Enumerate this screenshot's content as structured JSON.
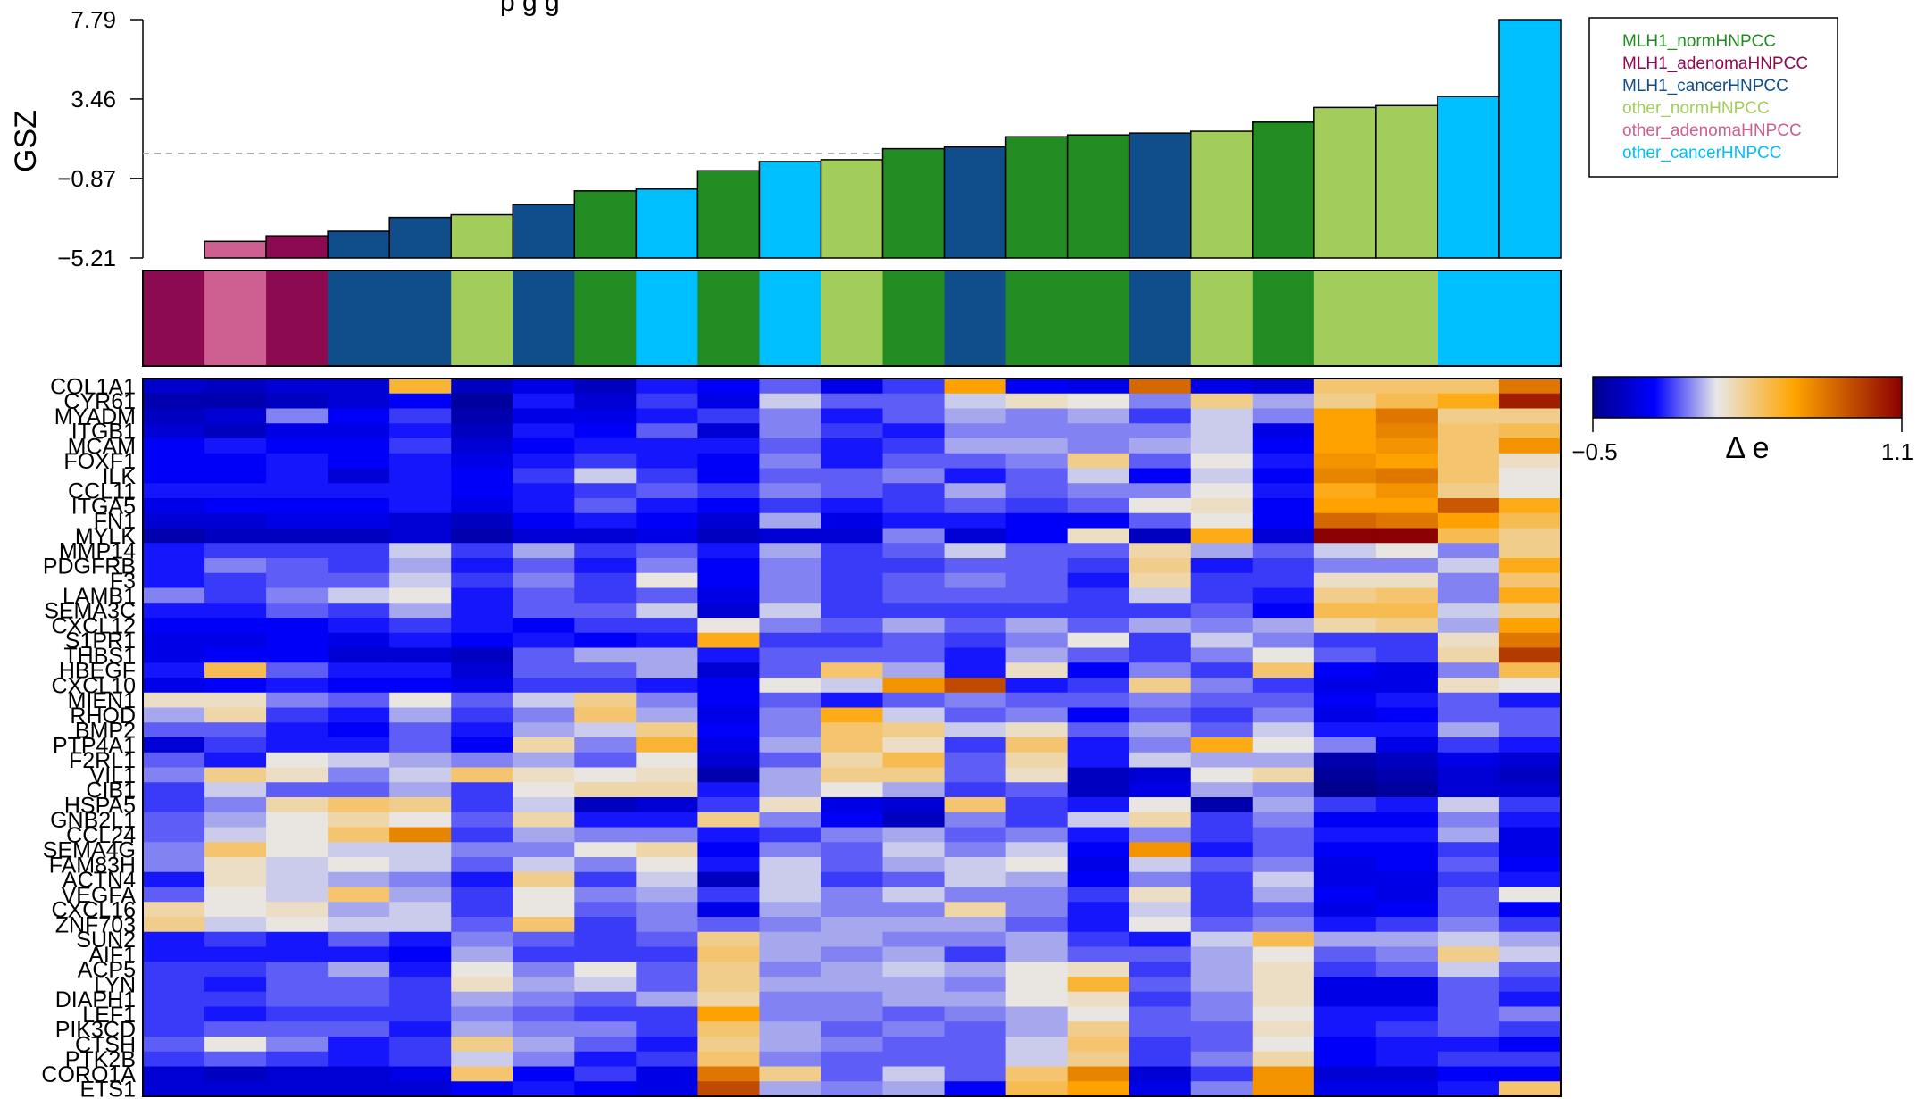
{
  "chart_data": {
    "type": "heatmap",
    "title_partial": "p     g          g",
    "bar_panel": {
      "ylabel": "GSZ",
      "y_ticks": [
        "7.79",
        "3.46",
        "−0.87",
        "−5.21"
      ],
      "y_tick_values": [
        7.79,
        3.46,
        -0.87,
        -5.21
      ],
      "ylim": [
        -5.21,
        7.79
      ],
      "threshold": 0.5,
      "values": [
        -5.3,
        -4.3,
        -4.0,
        -3.75,
        -3.0,
        -2.85,
        -2.3,
        -1.55,
        -1.45,
        -0.45,
        0.05,
        0.15,
        0.75,
        0.85,
        1.4,
        1.5,
        1.6,
        1.7,
        2.2,
        3.0,
        3.1,
        3.6,
        7.79
      ],
      "groups": [
        1,
        4,
        1,
        2,
        2,
        3,
        2,
        0,
        5,
        0,
        5,
        3,
        0,
        2,
        0,
        0,
        2,
        3,
        0,
        3,
        3,
        5,
        5
      ]
    },
    "legend": [
      {
        "label": "MLH1_normHNPCC",
        "color": "#228b22"
      },
      {
        "label": "MLH1_adenomaHNPCC",
        "color": "#8b0a50"
      },
      {
        "label": "MLH1_cancerHNPCC",
        "color": "#104e8b"
      },
      {
        "label": "other_normHNPCC",
        "color": "#a2cd5a"
      },
      {
        "label": "other_adenomaHNPCC",
        "color": "#cd6090"
      },
      {
        "label": "other_cancerHNPCC",
        "color": "#00bfff"
      }
    ],
    "colorbar": {
      "label": "Δ e",
      "min_label": "−0.5",
      "max_label": "1.1",
      "min": -0.5,
      "max": 1.1
    },
    "genes": [
      "COL1A1",
      "CYR61",
      "MYADM",
      "ITGB1",
      "MCAM",
      "FOXF1",
      "ILK",
      "CCL11",
      "ITGA5",
      "FN1",
      "MYLK",
      "MMP14",
      "PDGFRB",
      "F3",
      "LAMB1",
      "SEMA3C",
      "CXCL12",
      "S1PR1",
      "THBS1",
      "HBEGF",
      "CXCL10",
      "MIEN1",
      "RHOD",
      "BMP2",
      "PTP4A1",
      "F2RL1",
      "VIL1",
      "CIB1",
      "HSPA5",
      "GNB2L1",
      "CCL24",
      "SEMA4G",
      "FAM83H",
      "ACTN4",
      "VEGFA",
      "CXCL16",
      "ZNF703",
      "SUN2",
      "AIF1",
      "ACP5",
      "LYN",
      "DIAPH1",
      "LEF1",
      "PIK3CD",
      "CTSH",
      "PTK2B",
      "CORO1A",
      "ETS1"
    ],
    "matrix": [
      [
        -0.32,
        -0.35,
        -0.3,
        -0.3,
        0.45,
        -0.35,
        -0.25,
        -0.35,
        -0.15,
        -0.2,
        -0.05,
        -0.25,
        -0.1,
        0.55,
        -0.2,
        -0.25,
        0.75,
        -0.25,
        -0.3,
        0.35,
        0.35,
        0.35,
        0.7
      ],
      [
        -0.4,
        -0.4,
        -0.35,
        -0.3,
        -0.2,
        -0.45,
        -0.15,
        -0.3,
        -0.1,
        -0.25,
        0.1,
        -0.05,
        -0.05,
        0.1,
        0.2,
        0.15,
        0.0,
        0.3,
        0.05,
        0.3,
        0.4,
        0.5,
        1.0
      ],
      [
        -0.35,
        -0.3,
        0.0,
        -0.2,
        -0.1,
        -0.4,
        -0.25,
        -0.25,
        -0.15,
        -0.1,
        0.0,
        -0.15,
        -0.05,
        0.05,
        0.0,
        0.05,
        -0.1,
        0.1,
        0.0,
        0.55,
        0.7,
        0.3,
        0.3
      ],
      [
        -0.3,
        -0.35,
        -0.25,
        -0.25,
        -0.15,
        -0.35,
        -0.15,
        -0.2,
        -0.05,
        -0.3,
        0.0,
        -0.1,
        -0.15,
        0.0,
        0.0,
        0.0,
        0.0,
        0.1,
        -0.25,
        0.55,
        0.65,
        0.35,
        0.4
      ],
      [
        -0.2,
        -0.15,
        -0.2,
        -0.2,
        -0.1,
        -0.3,
        -0.2,
        -0.15,
        -0.15,
        -0.15,
        -0.05,
        -0.15,
        -0.1,
        0.05,
        0.05,
        0.0,
        0.05,
        0.1,
        -0.2,
        0.55,
        0.6,
        0.35,
        0.6
      ],
      [
        -0.2,
        -0.2,
        -0.15,
        -0.2,
        -0.15,
        -0.25,
        -0.15,
        -0.1,
        -0.15,
        -0.2,
        0.0,
        -0.15,
        -0.05,
        -0.05,
        0.0,
        0.3,
        -0.05,
        0.15,
        -0.15,
        0.6,
        0.55,
        0.35,
        0.2
      ],
      [
        -0.2,
        -0.2,
        -0.15,
        -0.3,
        -0.15,
        -0.2,
        -0.1,
        0.1,
        -0.1,
        -0.2,
        -0.05,
        -0.05,
        0.0,
        -0.15,
        -0.05,
        0.1,
        -0.2,
        0.1,
        -0.2,
        0.65,
        0.7,
        0.35,
        0.15
      ],
      [
        -0.15,
        -0.15,
        -0.15,
        -0.15,
        -0.15,
        -0.2,
        -0.15,
        -0.1,
        -0.05,
        -0.1,
        0.0,
        -0.05,
        -0.1,
        0.05,
        -0.05,
        0.0,
        0.0,
        0.15,
        -0.15,
        0.5,
        0.6,
        0.3,
        0.15
      ],
      [
        -0.25,
        -0.2,
        -0.2,
        -0.2,
        -0.15,
        -0.25,
        -0.15,
        -0.05,
        -0.15,
        -0.2,
        -0.1,
        -0.15,
        -0.1,
        -0.05,
        -0.1,
        -0.05,
        0.15,
        0.2,
        -0.2,
        0.55,
        0.55,
        0.8,
        0.5
      ],
      [
        -0.3,
        -0.3,
        -0.25,
        -0.25,
        -0.3,
        -0.35,
        -0.2,
        -0.15,
        -0.2,
        -0.3,
        0.05,
        -0.25,
        -0.15,
        -0.15,
        -0.2,
        -0.2,
        -0.05,
        0.15,
        -0.2,
        0.75,
        0.7,
        0.55,
        0.4
      ],
      [
        -0.4,
        -0.35,
        -0.35,
        -0.35,
        -0.3,
        -0.4,
        -0.3,
        -0.3,
        -0.25,
        -0.35,
        -0.3,
        -0.3,
        0.0,
        -0.3,
        -0.2,
        0.2,
        -0.35,
        0.5,
        -0.3,
        1.1,
        1.1,
        0.4,
        0.3
      ],
      [
        -0.15,
        -0.1,
        -0.1,
        -0.1,
        0.1,
        -0.1,
        0.05,
        -0.1,
        -0.05,
        -0.15,
        0.05,
        -0.1,
        -0.05,
        0.1,
        -0.05,
        -0.05,
        0.25,
        0.05,
        -0.05,
        0.1,
        0.15,
        0.0,
        0.3
      ],
      [
        -0.15,
        0.0,
        -0.05,
        -0.1,
        0.05,
        -0.15,
        -0.05,
        -0.15,
        0.0,
        -0.2,
        0.0,
        -0.1,
        -0.1,
        -0.05,
        -0.05,
        -0.1,
        0.3,
        -0.15,
        -0.1,
        0.0,
        0.0,
        0.1,
        0.5
      ],
      [
        -0.15,
        -0.1,
        -0.05,
        -0.05,
        0.1,
        -0.1,
        0.0,
        -0.1,
        0.15,
        -0.2,
        0.0,
        -0.1,
        -0.05,
        0.0,
        -0.05,
        -0.15,
        0.25,
        -0.1,
        -0.1,
        0.2,
        0.2,
        0.0,
        0.35
      ],
      [
        0.0,
        -0.1,
        0.0,
        0.1,
        0.15,
        -0.15,
        -0.05,
        -0.1,
        -0.05,
        -0.25,
        0.0,
        -0.1,
        -0.05,
        -0.05,
        -0.05,
        -0.1,
        0.1,
        -0.1,
        -0.15,
        0.3,
        0.35,
        0.0,
        0.5
      ],
      [
        -0.15,
        -0.15,
        -0.05,
        -0.1,
        0.05,
        -0.15,
        -0.05,
        -0.05,
        0.1,
        -0.3,
        0.1,
        -0.1,
        -0.1,
        -0.1,
        -0.1,
        -0.1,
        -0.1,
        -0.05,
        -0.2,
        0.4,
        0.4,
        0.1,
        0.3
      ],
      [
        -0.2,
        -0.2,
        -0.2,
        -0.15,
        -0.1,
        -0.15,
        -0.2,
        -0.1,
        -0.1,
        0.15,
        0.0,
        -0.05,
        0.05,
        -0.05,
        0.05,
        -0.05,
        0.05,
        0.0,
        0.05,
        0.25,
        0.3,
        0.05,
        0.55
      ],
      [
        -0.25,
        -0.25,
        -0.2,
        -0.25,
        -0.15,
        -0.2,
        -0.15,
        -0.2,
        -0.15,
        0.5,
        -0.1,
        -0.1,
        -0.05,
        -0.1,
        0.0,
        0.15,
        -0.1,
        0.1,
        0.0,
        -0.1,
        -0.1,
        0.2,
        0.7
      ],
      [
        -0.25,
        -0.2,
        -0.2,
        -0.3,
        -0.3,
        -0.35,
        -0.05,
        0.05,
        0.05,
        -0.15,
        -0.05,
        -0.05,
        -0.05,
        -0.15,
        0.05,
        -0.05,
        -0.1,
        0.0,
        0.15,
        -0.05,
        -0.1,
        0.25,
        0.9
      ],
      [
        -0.15,
        0.4,
        -0.05,
        -0.15,
        -0.15,
        -0.3,
        -0.05,
        -0.05,
        0.05,
        -0.3,
        -0.05,
        0.35,
        0.05,
        -0.15,
        0.2,
        -0.2,
        0.0,
        -0.1,
        0.35,
        -0.2,
        -0.25,
        0.0,
        0.4
      ],
      [
        -0.25,
        -0.2,
        -0.15,
        -0.2,
        -0.2,
        -0.25,
        -0.1,
        -0.1,
        -0.15,
        -0.2,
        0.15,
        0.1,
        0.6,
        0.85,
        -0.15,
        -0.1,
        0.3,
        0.0,
        -0.1,
        -0.25,
        -0.25,
        0.2,
        0.15
      ],
      [
        0.2,
        0.2,
        0.0,
        -0.05,
        0.15,
        -0.05,
        0.1,
        0.3,
        0.0,
        -0.2,
        -0.05,
        -0.15,
        -0.05,
        0.0,
        -0.05,
        -0.05,
        0.0,
        -0.05,
        -0.05,
        -0.2,
        -0.15,
        -0.05,
        -0.15
      ],
      [
        0.05,
        0.25,
        -0.1,
        -0.15,
        0.05,
        -0.1,
        0.0,
        0.35,
        0.05,
        -0.25,
        0.0,
        0.5,
        0.1,
        -0.05,
        0.0,
        -0.2,
        -0.05,
        -0.1,
        0.0,
        -0.25,
        -0.2,
        -0.05,
        -0.05
      ],
      [
        -0.05,
        -0.05,
        -0.15,
        -0.2,
        -0.05,
        -0.15,
        0.05,
        0.1,
        0.3,
        -0.2,
        0.0,
        0.35,
        0.3,
        0.1,
        0.2,
        -0.05,
        0.05,
        -0.05,
        0.1,
        -0.15,
        -0.15,
        0.05,
        -0.05
      ],
      [
        -0.3,
        -0.1,
        -0.15,
        -0.15,
        -0.05,
        -0.2,
        0.25,
        0.0,
        0.45,
        -0.25,
        0.05,
        0.35,
        0.2,
        -0.1,
        0.35,
        -0.15,
        0.0,
        0.5,
        0.15,
        0.0,
        -0.25,
        -0.1,
        -0.15
      ],
      [
        -0.05,
        -0.15,
        0.15,
        0.1,
        0.05,
        0.0,
        0.05,
        -0.05,
        0.15,
        -0.3,
        -0.05,
        0.25,
        0.4,
        -0.05,
        0.25,
        -0.15,
        0.1,
        0.05,
        0.05,
        -0.4,
        -0.35,
        -0.25,
        -0.3
      ],
      [
        0.0,
        0.3,
        0.2,
        0.0,
        0.1,
        0.35,
        0.2,
        0.15,
        0.2,
        -0.4,
        0.05,
        0.3,
        0.3,
        -0.05,
        0.2,
        -0.35,
        -0.3,
        0.15,
        0.25,
        -0.45,
        -0.4,
        -0.3,
        -0.35
      ],
      [
        -0.1,
        0.1,
        -0.05,
        -0.05,
        0.05,
        -0.1,
        0.15,
        0.25,
        0.25,
        -0.15,
        0.05,
        0.15,
        0.05,
        -0.1,
        -0.05,
        -0.35,
        -0.25,
        0.05,
        0.0,
        -0.5,
        -0.45,
        -0.3,
        -0.3
      ],
      [
        -0.1,
        0.0,
        0.25,
        0.35,
        0.3,
        -0.1,
        0.1,
        -0.35,
        -0.3,
        -0.1,
        0.2,
        -0.25,
        -0.3,
        0.35,
        -0.1,
        -0.15,
        0.15,
        -0.4,
        0.05,
        -0.1,
        -0.15,
        0.1,
        -0.1
      ],
      [
        -0.05,
        0.05,
        0.15,
        0.25,
        0.15,
        -0.05,
        0.25,
        -0.15,
        -0.15,
        0.3,
        0.0,
        -0.2,
        -0.35,
        0.0,
        -0.1,
        0.1,
        0.25,
        -0.1,
        0.0,
        -0.2,
        -0.2,
        0.0,
        -0.15
      ],
      [
        -0.05,
        0.1,
        0.15,
        0.35,
        0.65,
        -0.1,
        0.05,
        0.0,
        0.0,
        -0.15,
        -0.1,
        0.0,
        0.05,
        -0.05,
        0.0,
        -0.15,
        0.0,
        -0.1,
        -0.05,
        -0.15,
        -0.15,
        0.05,
        -0.25
      ],
      [
        0.0,
        0.35,
        0.15,
        0.1,
        0.1,
        0.0,
        0.0,
        0.15,
        0.25,
        -0.2,
        0.0,
        -0.05,
        0.1,
        0.0,
        0.1,
        -0.2,
        0.6,
        -0.15,
        -0.05,
        -0.2,
        -0.2,
        -0.1,
        -0.25
      ],
      [
        0.0,
        0.2,
        0.1,
        0.15,
        0.1,
        -0.05,
        0.1,
        0.0,
        0.15,
        -0.15,
        0.1,
        -0.05,
        0.05,
        0.1,
        0.15,
        -0.25,
        0.1,
        -0.05,
        0.0,
        -0.25,
        -0.2,
        -0.05,
        -0.2
      ],
      [
        -0.15,
        0.2,
        0.1,
        0.05,
        0.0,
        -0.15,
        0.3,
        -0.1,
        0.1,
        -0.35,
        0.1,
        -0.1,
        -0.05,
        0.1,
        0.05,
        -0.2,
        0.0,
        -0.1,
        0.1,
        -0.25,
        -0.25,
        -0.1,
        -0.15
      ],
      [
        -0.05,
        0.15,
        0.1,
        0.35,
        0.05,
        -0.1,
        0.15,
        0.0,
        0.05,
        -0.1,
        0.1,
        0.0,
        0.1,
        0.0,
        0.0,
        -0.1,
        0.2,
        -0.1,
        0.05,
        -0.2,
        -0.25,
        -0.05,
        0.15
      ],
      [
        0.25,
        0.15,
        0.2,
        0.05,
        0.1,
        -0.1,
        0.15,
        -0.05,
        0.0,
        -0.25,
        0.05,
        0.0,
        0.0,
        0.25,
        0.0,
        -0.15,
        0.1,
        -0.1,
        -0.05,
        -0.25,
        -0.2,
        -0.05,
        -0.2
      ],
      [
        0.3,
        0.1,
        0.15,
        0.1,
        0.1,
        -0.05,
        0.35,
        -0.1,
        0.0,
        -0.05,
        0.0,
        0.05,
        0.05,
        0.05,
        -0.05,
        -0.15,
        0.15,
        -0.05,
        0.0,
        -0.15,
        -0.1,
        0.0,
        -0.1
      ],
      [
        -0.15,
        -0.1,
        -0.15,
        -0.05,
        -0.15,
        0.0,
        -0.05,
        -0.1,
        -0.05,
        0.3,
        0.05,
        0.05,
        0.0,
        0.0,
        0.05,
        -0.1,
        -0.15,
        0.1,
        0.4,
        0.05,
        0.05,
        0.1,
        0.05
      ],
      [
        -0.15,
        -0.15,
        -0.15,
        -0.15,
        -0.2,
        0.05,
        -0.1,
        -0.1,
        -0.1,
        0.35,
        0.05,
        0.0,
        0.05,
        -0.1,
        0.05,
        -0.05,
        -0.05,
        0.05,
        0.15,
        -0.05,
        0.0,
        0.3,
        0.1
      ],
      [
        -0.1,
        -0.1,
        -0.05,
        0.05,
        -0.15,
        0.15,
        0.0,
        0.15,
        -0.05,
        0.3,
        0.0,
        0.05,
        0.1,
        0.05,
        0.15,
        0.2,
        -0.1,
        0.05,
        0.2,
        -0.1,
        -0.05,
        0.1,
        -0.05
      ],
      [
        -0.1,
        -0.15,
        -0.05,
        -0.05,
        -0.1,
        0.2,
        0.05,
        0.1,
        -0.05,
        0.3,
        0.05,
        0.05,
        0.05,
        0.0,
        0.15,
        0.45,
        -0.05,
        0.05,
        0.2,
        -0.25,
        -0.25,
        -0.05,
        -0.1
      ],
      [
        -0.1,
        -0.1,
        -0.05,
        -0.05,
        -0.1,
        0.05,
        0.0,
        -0.05,
        0.05,
        0.25,
        0.0,
        0.0,
        0.05,
        0.05,
        0.15,
        0.2,
        -0.1,
        0.0,
        0.2,
        -0.25,
        -0.25,
        -0.05,
        -0.15
      ],
      [
        -0.1,
        -0.15,
        -0.1,
        -0.1,
        -0.1,
        0.0,
        -0.05,
        -0.1,
        -0.1,
        0.55,
        0.0,
        0.0,
        -0.05,
        0.0,
        0.05,
        0.15,
        -0.05,
        0.0,
        0.15,
        -0.15,
        -0.15,
        -0.05,
        0.0
      ],
      [
        -0.1,
        -0.05,
        -0.05,
        -0.05,
        -0.15,
        0.05,
        0.0,
        0.0,
        -0.1,
        0.35,
        0.05,
        -0.05,
        0.0,
        -0.05,
        0.05,
        0.3,
        -0.05,
        -0.05,
        0.2,
        -0.15,
        -0.1,
        -0.05,
        -0.1
      ],
      [
        -0.05,
        0.15,
        0.0,
        -0.15,
        -0.1,
        0.3,
        0.05,
        -0.05,
        -0.15,
        0.3,
        0.05,
        0.0,
        -0.05,
        -0.05,
        0.1,
        0.35,
        -0.1,
        -0.05,
        0.15,
        -0.2,
        -0.15,
        -0.15,
        -0.2
      ],
      [
        -0.1,
        -0.05,
        -0.1,
        -0.15,
        -0.1,
        0.1,
        0.0,
        -0.15,
        -0.1,
        0.35,
        0.0,
        -0.05,
        -0.05,
        -0.05,
        0.1,
        0.3,
        -0.1,
        0.0,
        0.25,
        -0.2,
        -0.15,
        -0.1,
        -0.1
      ],
      [
        -0.3,
        -0.35,
        -0.3,
        -0.3,
        -0.25,
        0.35,
        -0.2,
        -0.1,
        -0.25,
        0.7,
        0.3,
        -0.05,
        0.1,
        -0.05,
        0.35,
        0.65,
        -0.3,
        -0.1,
        0.6,
        -0.3,
        -0.3,
        -0.2,
        -0.2
      ],
      [
        -0.3,
        -0.3,
        -0.3,
        -0.3,
        -0.3,
        -0.2,
        -0.15,
        -0.2,
        -0.25,
        0.85,
        0.05,
        0.0,
        0.05,
        -0.2,
        0.4,
        0.55,
        -0.25,
        0.0,
        0.6,
        -0.25,
        -0.25,
        -0.15,
        0.35
      ]
    ]
  }
}
